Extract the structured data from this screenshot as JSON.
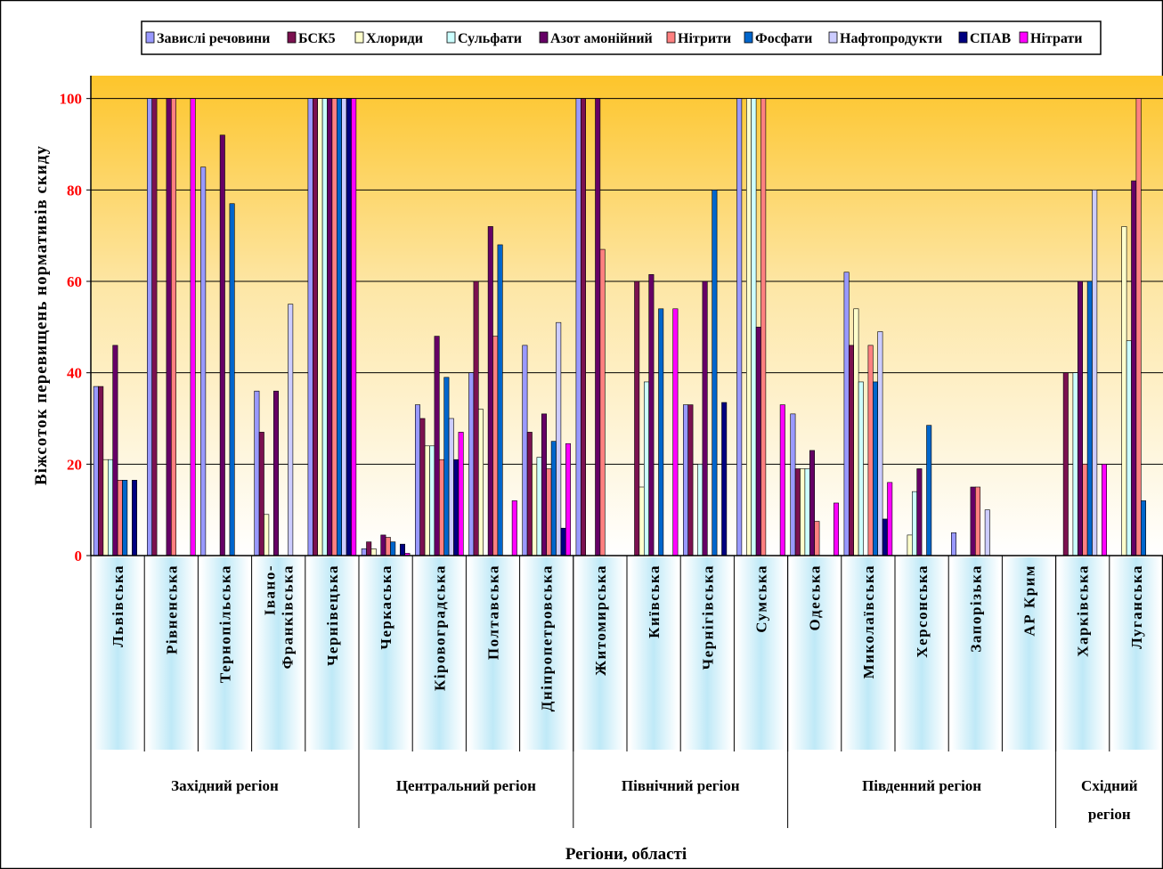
{
  "chart_data": {
    "type": "bar",
    "ylabel": "Віжсоток перевищень нормативів скиду",
    "xlabel": "Регіони, області",
    "ylim": [
      0,
      105
    ],
    "yticks": [
      0,
      20,
      40,
      60,
      80,
      100
    ],
    "ytick_labels": [
      "0",
      "20",
      "40",
      "60",
      "80",
      "100"
    ],
    "grid": true,
    "legend_position": "top",
    "categories": [
      "Львівська",
      "Рівненська",
      "Тернопільська",
      "Івано-Франківська",
      "Чернівецька",
      "Черкаська",
      "Кіровоградська",
      "Полтавська",
      "Дніпропетровська",
      "Житомирська",
      "Київська",
      "Чернігівська",
      "Сумська",
      "Одеська",
      "Миколаївська",
      "Херсонська",
      "Запорізька",
      "АР Крим",
      "Харківська",
      "Луганська"
    ],
    "category_lines": [
      [
        "Львівська"
      ],
      [
        "Рівненська"
      ],
      [
        "Тернопільська"
      ],
      [
        "Івано-",
        "Франківська"
      ],
      [
        "Чернівецька"
      ],
      [
        "Черкаська"
      ],
      [
        "Кіровоградська"
      ],
      [
        "Полтавська"
      ],
      [
        "Дніпропетровська"
      ],
      [
        "Житомирська"
      ],
      [
        "Київська"
      ],
      [
        "Чернігівська"
      ],
      [
        "Сумська"
      ],
      [
        "Одеська"
      ],
      [
        "Миколаївська"
      ],
      [
        "Херсонська"
      ],
      [
        "Запорізька"
      ],
      [
        "АР Крим"
      ],
      [
        "Харківська"
      ],
      [
        "Луганська"
      ]
    ],
    "groups": [
      {
        "lines": [
          "Західний регіон"
        ],
        "count": 5
      },
      {
        "lines": [
          "Центральний регіон"
        ],
        "count": 4
      },
      {
        "lines": [
          "Північний регіон"
        ],
        "count": 4
      },
      {
        "lines": [
          "Південний регіон"
        ],
        "count": 5
      },
      {
        "lines": [
          "Східний",
          "регіон"
        ],
        "count": 2
      }
    ],
    "series": [
      {
        "name": "Завислі речовини",
        "color": "#9999ff",
        "values": [
          37,
          100,
          85,
          36,
          100,
          1.5,
          33,
          40,
          46,
          100,
          0,
          33,
          100,
          31,
          62,
          0,
          5,
          0,
          0,
          0
        ]
      },
      {
        "name": "БСК5",
        "color": "#7b1150",
        "values": [
          37,
          100,
          0,
          27,
          100,
          3,
          30,
          60,
          27,
          100,
          60,
          33,
          0,
          19,
          46,
          0,
          0,
          0,
          40,
          0
        ]
      },
      {
        "name": "Хлориди",
        "color": "#ffffcc",
        "values": [
          21,
          0,
          0,
          9,
          100,
          1.5,
          24,
          32,
          20,
          0,
          15,
          0,
          100,
          19,
          54,
          4.5,
          0,
          0,
          0,
          72
        ]
      },
      {
        "name": "Сульфати",
        "color": "#ccffff",
        "values": [
          21,
          0,
          0,
          0,
          100,
          0,
          24,
          0,
          21.5,
          0,
          38,
          20,
          100,
          19,
          38,
          14,
          0,
          0,
          40,
          47
        ]
      },
      {
        "name": "Азот амонійний",
        "color": "#660066",
        "values": [
          46,
          100,
          92,
          36,
          100,
          4.5,
          48,
          72,
          31,
          100,
          61.5,
          60,
          50,
          23,
          0,
          19,
          15,
          0,
          60,
          82
        ]
      },
      {
        "name": "Нітрити",
        "color": "#ff8080",
        "values": [
          16.5,
          100,
          0,
          0,
          100,
          4,
          21,
          48,
          19,
          67,
          0,
          0,
          100,
          7.5,
          46,
          0,
          15,
          0,
          20,
          100
        ]
      },
      {
        "name": "Фосфати",
        "color": "#0066cc",
        "values": [
          16.5,
          0,
          77,
          0,
          100,
          3,
          39,
          68,
          25,
          0,
          54,
          80,
          0,
          0,
          38,
          28.5,
          0,
          0,
          60,
          12
        ]
      },
      {
        "name": "Нафтопродукти",
        "color": "#ccccff",
        "values": [
          0,
          0,
          0,
          55,
          100,
          0,
          30,
          0,
          51,
          0,
          0,
          0,
          0,
          0,
          49,
          0,
          10,
          0,
          80,
          0
        ]
      },
      {
        "name": "СПАВ",
        "color": "#000080",
        "values": [
          16.5,
          0,
          0,
          0,
          100,
          2.5,
          21,
          0,
          6,
          0,
          0,
          33.5,
          0,
          0,
          8,
          0,
          0,
          0,
          0,
          0
        ]
      },
      {
        "name": "Нітрати",
        "color": "#ff00ff",
        "values": [
          0,
          100,
          0,
          0,
          100,
          0.5,
          27,
          12,
          24.5,
          0,
          54,
          0,
          33,
          11.5,
          16,
          0,
          0,
          0,
          20,
          0
        ]
      }
    ]
  }
}
